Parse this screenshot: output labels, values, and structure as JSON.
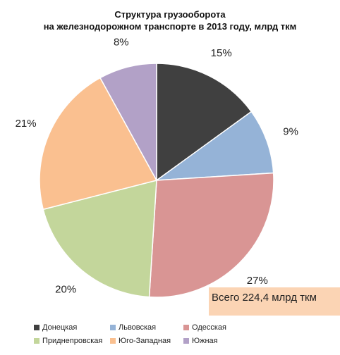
{
  "chart_data": {
    "type": "pie",
    "title": [
      "Структура грузооборота",
      "на железнодорожном транспорте в 2013 году, млрд ткм"
    ],
    "categories": [
      "Донецкая",
      "Львовская",
      "Одесская",
      "Приднепровская",
      "Юго-Западная",
      "Южная"
    ],
    "values": [
      15,
      9,
      27,
      20,
      21,
      8
    ],
    "labels": [
      "15%",
      "9%",
      "27%",
      "20%",
      "21%",
      "8%"
    ],
    "colors": [
      "#404040",
      "#95b3d7",
      "#d99594",
      "#c3d69b",
      "#fac090",
      "#b2a1c7"
    ],
    "start": "12 o'clock, clockwise",
    "legend_position": "bottom",
    "annotation": "Всего 224,4 млрд ткм"
  }
}
